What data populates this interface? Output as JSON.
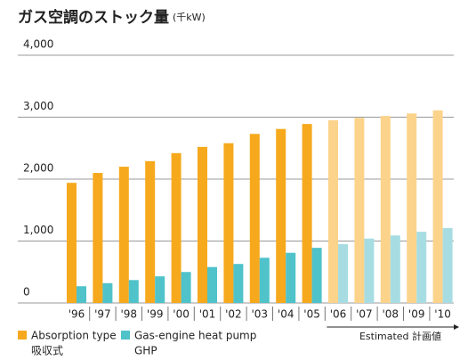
{
  "chart_data": {
    "type": "bar",
    "title": "ガス空調のストック量",
    "unit": "(千kW)",
    "categories": [
      "'96",
      "'97",
      "'98",
      "'99",
      "'00",
      "'01",
      "'02",
      "'03",
      "'04",
      "'05",
      "'06",
      "'07",
      "'08",
      "'09",
      "'10"
    ],
    "series": [
      {
        "name": "Absorption type",
        "name_ja": "吸収式",
        "color": "#f6a91d",
        "estimated_color": "#fcd38b",
        "values": [
          1940,
          2100,
          2200,
          2290,
          2420,
          2520,
          2580,
          2730,
          2810,
          2890,
          2950,
          2990,
          3020,
          3060,
          3110
        ]
      },
      {
        "name": "Gas-engine heat pump",
        "name_ja": "GHP",
        "color": "#4fc2ca",
        "estimated_color": "#a7dde2",
        "values": [
          270,
          320,
          370,
          430,
          500,
          580,
          630,
          730,
          810,
          890,
          950,
          1040,
          1090,
          1150,
          1210
        ]
      }
    ],
    "estimated": {
      "label": "Estimated 計画値",
      "start": "'06"
    },
    "ylim": [
      0,
      4000
    ],
    "yticks": [
      0,
      {
        "value": 1000,
        "label": "1,000"
      },
      {
        "value": 2000,
        "label": "2,000"
      },
      {
        "value": 3000,
        "label": "3,000"
      },
      {
        "value": 4000,
        "label": "4,000"
      }
    ],
    "grid": true
  }
}
